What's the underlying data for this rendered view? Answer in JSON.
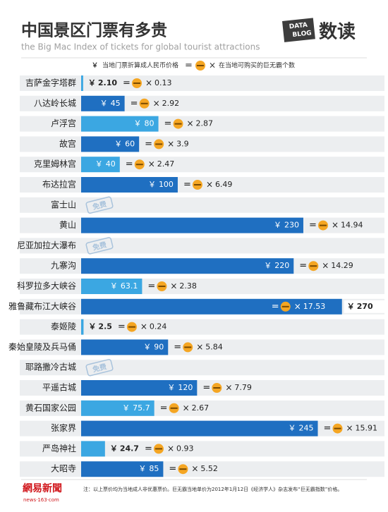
{
  "chart_data": {
    "type": "bar",
    "title": "中国景区门票有多贵",
    "subtitle": "the Big Mac Index of tickets for global tourist attractions",
    "logo": {
      "top": "DATA",
      "bottom": "BLOG",
      "name": "数读"
    },
    "legend": {
      "currency": "￥",
      "price_text": "当地门票折算成人民币价格",
      "equals": "=",
      "times": "×",
      "count_text": "在当地可购买的巨无霸个数"
    },
    "currency": "￥",
    "equals": "=",
    "times": "×",
    "free_label": "免费",
    "categories": [
      "吉萨金字塔群",
      "八达岭长城",
      "卢浮宫",
      "故宫",
      "克里姆林宫",
      "布达拉宫",
      "富士山",
      "黄山",
      "尼亚加拉大瀑布",
      "九寨沟",
      "科罗拉多大峡谷",
      "雅鲁藏布江大峡谷",
      "泰姬陵",
      "秦始皇陵及兵马俑",
      "耶路撒冷古城",
      "平遥古城",
      "黄石国家公园",
      "张家界",
      "严岛神社",
      "大昭寺"
    ],
    "values": [
      2.1,
      45,
      80,
      60,
      40,
      100,
      null,
      230,
      null,
      220,
      63.1,
      270,
      2.5,
      90,
      null,
      120,
      75.7,
      245,
      24.7,
      85
    ],
    "value_labels": [
      "2.10",
      "45",
      "80",
      "60",
      "40",
      "100",
      null,
      "230",
      null,
      "220",
      "63.1",
      "270",
      "2.5",
      "90",
      null,
      "120",
      "75.7",
      "245",
      "24.7",
      "85"
    ],
    "bigmac": [
      0.13,
      2.92,
      2.87,
      3.9,
      2.47,
      6.49,
      null,
      14.94,
      null,
      14.29,
      2.38,
      17.53,
      0.24,
      5.84,
      null,
      7.79,
      2.67,
      15.91,
      0.93,
      5.52
    ],
    "colors": [
      "#3ba7e2",
      "#1f6fc1",
      "#3ba7e2",
      "#1f6fc1",
      "#3ba7e2",
      "#1f6fc1",
      null,
      "#1f6fc1",
      null,
      "#1f6fc1",
      "#3ba7e2",
      "#1f6fc1",
      "#3ba7e2",
      "#1f6fc1",
      null,
      "#1f6fc1",
      "#3ba7e2",
      "#1f6fc1",
      "#3ba7e2",
      "#1f6fc1"
    ],
    "xlim": [
      0,
      314
    ],
    "note": "注：以上票价均为当地成人非优惠票价。巨无霸当地单价为2012年1月12日《经济学人》杂志发布“巨无霸指数”价格。",
    "source": {
      "name": "網易新聞",
      "url": "news·163·com"
    }
  }
}
